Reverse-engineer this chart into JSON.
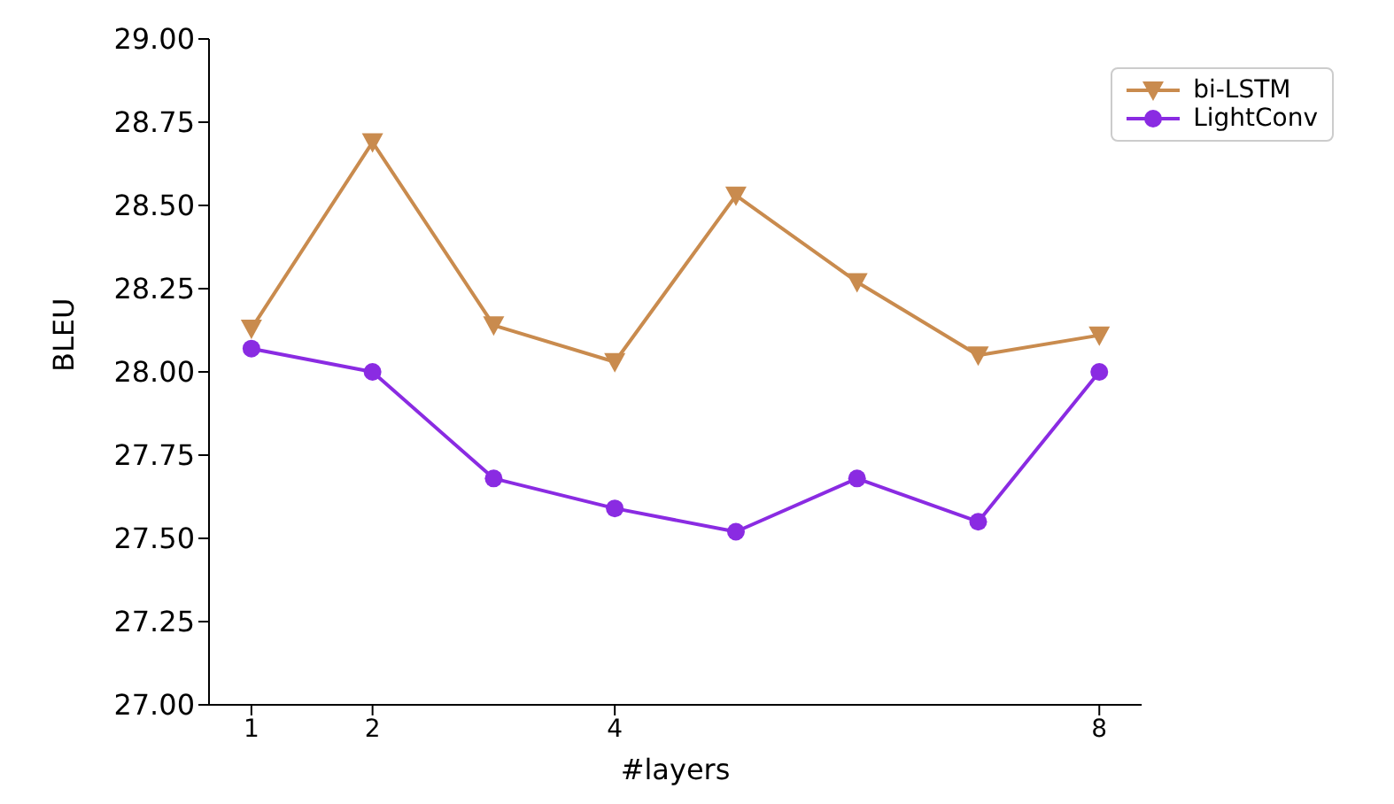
{
  "chart_data": {
    "type": "line",
    "xlabel": "#layers",
    "ylabel": "BLEU",
    "x": [
      1,
      2,
      3,
      4,
      5,
      6,
      7,
      8
    ],
    "xlim": [
      0.65,
      8.35
    ],
    "xticks": [
      1,
      2,
      4,
      8
    ],
    "ylim": [
      27,
      29
    ],
    "yticks": [
      {
        "value": 27,
        "label": "27.00"
      },
      {
        "value": 27.25,
        "label": "27.25"
      },
      {
        "value": 27.5,
        "label": "27.50"
      },
      {
        "value": 27.75,
        "label": "27.75"
      },
      {
        "value": 28,
        "label": "28.00"
      },
      {
        "value": 28.25,
        "label": "28.25"
      },
      {
        "value": 28.5,
        "label": "28.50"
      },
      {
        "value": 28.75,
        "label": "28.75"
      },
      {
        "value": 29,
        "label": "29.00"
      }
    ],
    "grid": false,
    "legend": "top right",
    "series": [
      {
        "name": "bi-LSTM",
        "color": "#c98b4e",
        "marker": "triangle-down",
        "values": [
          28.13,
          28.69,
          28.14,
          28.03,
          28.53,
          28.27,
          28.05,
          28.11
        ]
      },
      {
        "name": "LightConv",
        "color": "#8a2be2",
        "marker": "circle",
        "values": [
          28.07,
          28.0,
          27.68,
          27.59,
          27.52,
          27.68,
          27.55,
          28.0
        ]
      }
    ]
  }
}
